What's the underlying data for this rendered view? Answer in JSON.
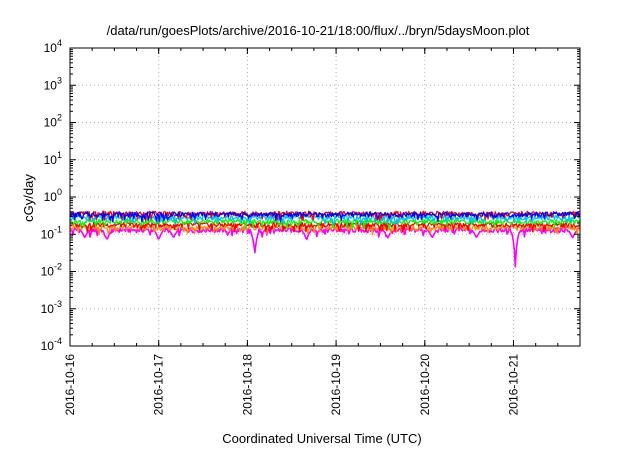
{
  "chart_data": {
    "type": "line",
    "title": "/data/run/goesPlots/archive/2016-10-21/18:00/flux/../bryn/5daysMoon.plot",
    "xlabel": "Coordinated Universal Time (UTC)",
    "ylabel": "cGy/day",
    "y_scale": "log",
    "ylim": [
      0.0001,
      10000
    ],
    "y_ticks": [
      {
        "value": 0.0001,
        "base": "10",
        "exp": "-4"
      },
      {
        "value": 0.001,
        "base": "10",
        "exp": "-3"
      },
      {
        "value": 0.01,
        "base": "10",
        "exp": "-2"
      },
      {
        "value": 0.1,
        "base": "10",
        "exp": "-1"
      },
      {
        "value": 1,
        "base": "10",
        "exp": "0"
      },
      {
        "value": 10,
        "base": "10",
        "exp": "1"
      },
      {
        "value": 100,
        "base": "10",
        "exp": "2"
      },
      {
        "value": 1000,
        "base": "10",
        "exp": "3"
      },
      {
        "value": 10000,
        "base": "10",
        "exp": "4"
      }
    ],
    "xlim": [
      "2016-10-16T00:00",
      "2016-10-21T18:00"
    ],
    "x_ticks": [
      "2016-10-16",
      "2016-10-17",
      "2016-10-18",
      "2016-10-19",
      "2016-10-20",
      "2016-10-21"
    ],
    "grid": true,
    "legend": "none",
    "series": [
      {
        "color": "#ff00ff",
        "baseline": 0.13,
        "dips": [
          {
            "x": "2016-10-16T04:00",
            "value": 0.08
          },
          {
            "x": "2016-10-16T10:00",
            "value": 0.07
          },
          {
            "x": "2016-10-17T00:00",
            "value": 0.07
          },
          {
            "x": "2016-10-17T04:00",
            "value": 0.08
          },
          {
            "x": "2016-10-18T02:00",
            "value": 0.03
          },
          {
            "x": "2016-10-18T16:00",
            "value": 0.07
          },
          {
            "x": "2016-10-19T14:00",
            "value": 0.08
          },
          {
            "x": "2016-10-20T02:00",
            "value": 0.08
          },
          {
            "x": "2016-10-20T14:00",
            "value": 0.08
          },
          {
            "x": "2016-10-21T00:30",
            "value": 0.013
          },
          {
            "x": "2016-10-21T16:00",
            "value": 0.08
          }
        ]
      },
      {
        "color": "#ff8c00",
        "baseline": 0.15,
        "dips": []
      },
      {
        "color": "#ff0000",
        "baseline": 0.18,
        "dips": []
      },
      {
        "color": "#00ff00",
        "baseline": 0.22,
        "dips": []
      },
      {
        "color": "#00bfff",
        "baseline": 0.28,
        "dips": []
      },
      {
        "color": "#ff0000",
        "baseline": 0.36,
        "dips": []
      },
      {
        "color": "#0000ff",
        "baseline": 0.34,
        "dips": []
      }
    ]
  }
}
